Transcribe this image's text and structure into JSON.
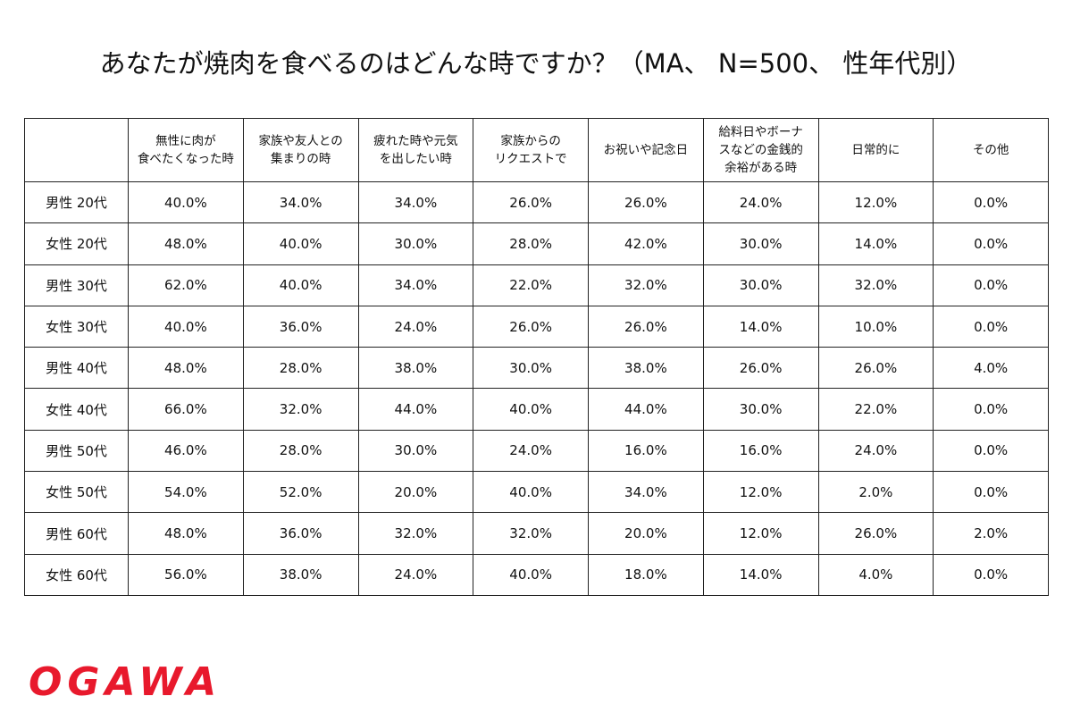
{
  "header": {
    "title": "あなたが焼肉を食べるのはどんな時ですか？（MA、 N=500、 性年代別）"
  },
  "table": {
    "columns": [
      "無性に肉が\n食べたくなった時",
      "家族や友人との\n集まりの時",
      "疲れた時や元気\nを出したい時",
      "家族からの\nリクエストで",
      "お祝いや記念日",
      "給料日やボーナ\nスなどの金銭的\n余裕がある時",
      "日常的に",
      "その他"
    ],
    "rows": [
      [
        "男性 20代",
        "40.0%",
        "34.0%",
        "34.0%",
        "26.0%",
        "26.0%",
        "24.0%",
        "12.0%",
        "0.0%"
      ],
      [
        "女性 20代",
        "48.0%",
        "40.0%",
        "30.0%",
        "28.0%",
        "42.0%",
        "30.0%",
        "14.0%",
        "0.0%"
      ],
      [
        "男性 30代",
        "62.0%",
        "40.0%",
        "34.0%",
        "22.0%",
        "32.0%",
        "30.0%",
        "32.0%",
        "0.0%"
      ],
      [
        "女性 30代",
        "40.0%",
        "36.0%",
        "24.0%",
        "26.0%",
        "26.0%",
        "14.0%",
        "10.0%",
        "0.0%"
      ],
      [
        "男性 40代",
        "48.0%",
        "28.0%",
        "38.0%",
        "30.0%",
        "38.0%",
        "26.0%",
        "26.0%",
        "4.0%"
      ],
      [
        "女性 40代",
        "66.0%",
        "32.0%",
        "44.0%",
        "40.0%",
        "44.0%",
        "30.0%",
        "22.0%",
        "0.0%"
      ],
      [
        "男性 50代",
        "46.0%",
        "28.0%",
        "30.0%",
        "24.0%",
        "16.0%",
        "16.0%",
        "24.0%",
        "0.0%"
      ],
      [
        "女性 50代",
        "54.0%",
        "52.0%",
        "20.0%",
        "40.0%",
        "34.0%",
        "12.0%",
        "2.0%",
        "0.0%"
      ],
      [
        "男性 60代",
        "48.0%",
        "36.0%",
        "32.0%",
        "32.0%",
        "20.0%",
        "12.0%",
        "26.0%",
        "2.0%"
      ],
      [
        "女性 60代",
        "56.0%",
        "38.0%",
        "24.0%",
        "40.0%",
        "18.0%",
        "14.0%",
        "4.0%",
        "0.0%"
      ]
    ]
  },
  "footer": {
    "logo": "OGAWA"
  }
}
